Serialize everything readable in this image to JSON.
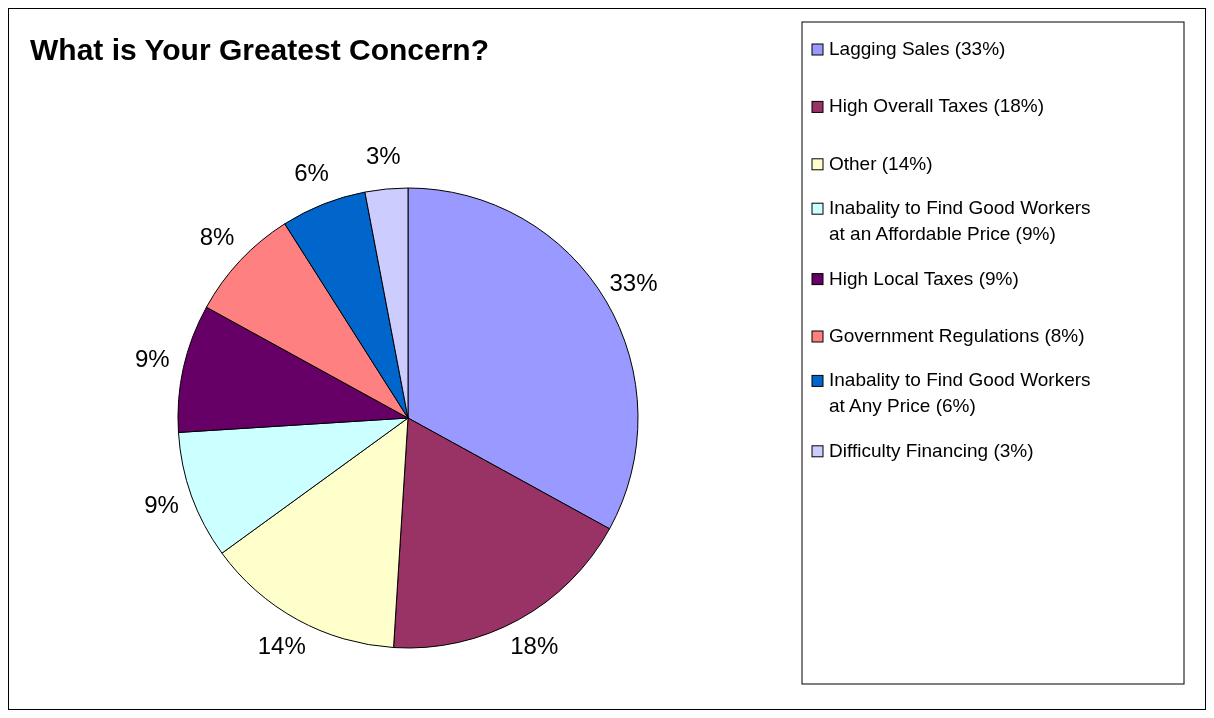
{
  "chart_data": {
    "type": "pie",
    "title": "What is Your Greatest Concern?",
    "categories": [
      "Lagging Sales (33%)",
      "High Overall Taxes (18%)",
      "Other (14%)",
      "Inabality to Find Good Workers at an Affordable Price (9%)",
      "High Local Taxes (9%)",
      "Government Regulations (8%)",
      "Inabality to Find Good Workers at Any Price (6%)",
      "Difficulty Financing (3%)"
    ],
    "values": [
      33,
      18,
      14,
      9,
      9,
      8,
      6,
      3
    ],
    "colors": [
      "#9999ff",
      "#993366",
      "#ffffcc",
      "#ccffff",
      "#660066",
      "#ff8080",
      "#0066cc",
      "#ccccff"
    ],
    "value_labels": [
      "33%",
      "18%",
      "14%",
      "9%",
      "9%",
      "8%",
      "6%",
      "3%"
    ],
    "legend": "right"
  }
}
